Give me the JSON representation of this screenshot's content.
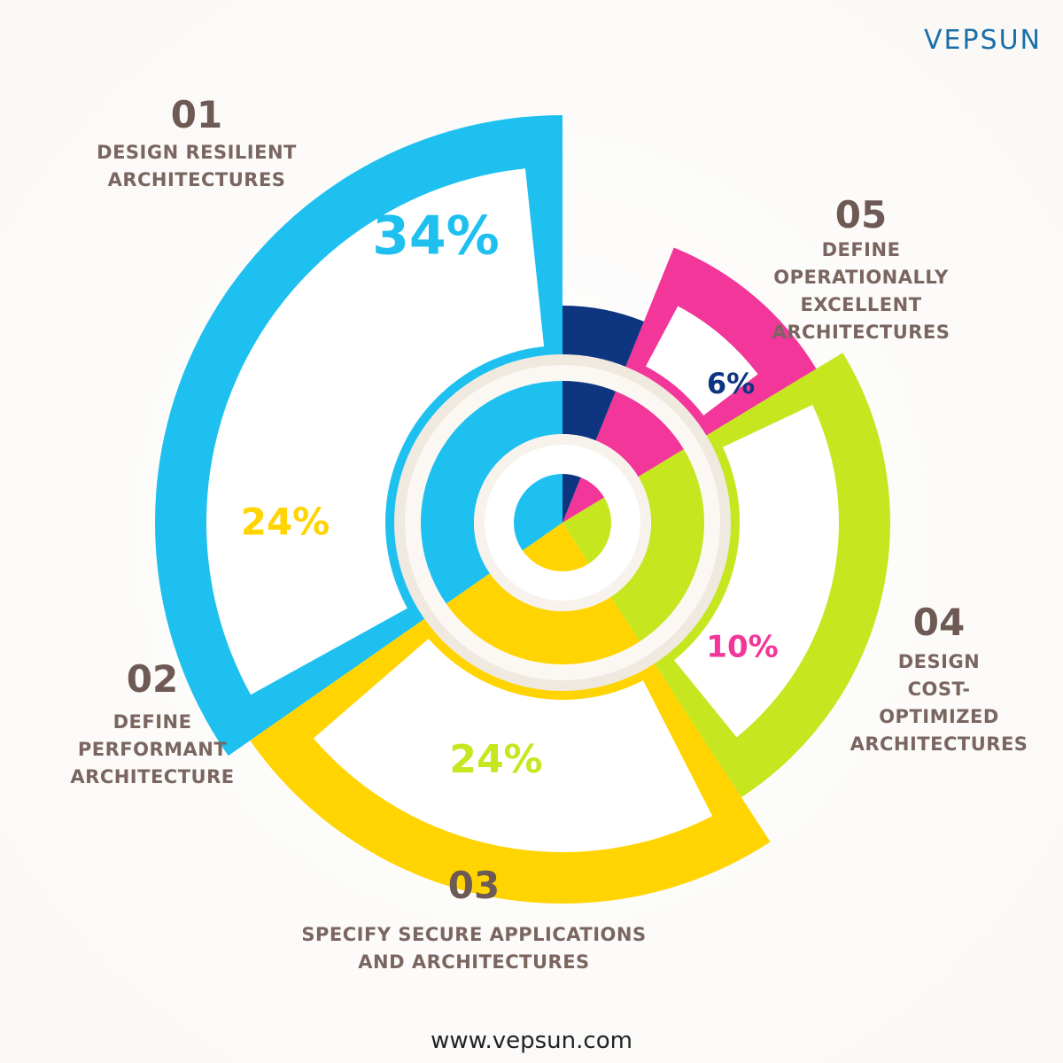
{
  "brand": "VEPSUN",
  "website": "www.vepsun.com",
  "chart_data": {
    "type": "pie",
    "numbers": [
      "01",
      "02",
      "03",
      "04",
      "05"
    ],
    "categories": [
      "DESIGN RESILIENT\nARCHITECTURES",
      "DEFINE\nPERFORMANT\nARCHITECTURE",
      "SPECIFY SECURE APPLICATIONS\nAND ARCHITECTURES",
      "DESIGN\nCOST-OPTIMIZED\nARCHITECTURES",
      "DEFINE OPERATIONALLY\nEXCELLENT ARCHITECTURES"
    ],
    "values": [
      34,
      24,
      24,
      10,
      6
    ],
    "value_labels": [
      "34%",
      "24%",
      "24%",
      "10%",
      "6%"
    ],
    "colors": [
      "#1ec0f0",
      "#ffd400",
      "#c6e620",
      "#f2369a",
      "#0e3580"
    ]
  }
}
